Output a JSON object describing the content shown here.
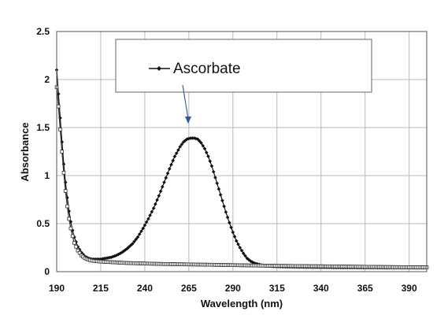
{
  "chart_data": {
    "type": "line",
    "xlabel": "Wavelength (nm)",
    "ylabel": "Absorbance",
    "xlim": [
      190,
      400
    ],
    "ylim": [
      0,
      2.5
    ],
    "x_ticks": [
      "190",
      "215",
      "240",
      "265",
      "290",
      "315",
      "340",
      "365",
      "390"
    ],
    "y_ticks": [
      "0",
      "0.5",
      "1",
      "1.5",
      "2",
      "2.5"
    ],
    "grid": true,
    "legend_position": "top-center",
    "series": [
      {
        "name": "Ascorbate",
        "marker": "diamond",
        "color": "#111111",
        "x": [
          190,
          191,
          192,
          193,
          194,
          195,
          196,
          197,
          198,
          199,
          200,
          202,
          204,
          206,
          208,
          210,
          212,
          215,
          218,
          221,
          224,
          227,
          230,
          233,
          236,
          239,
          242,
          245,
          248,
          251,
          254,
          257,
          260,
          262,
          264,
          266,
          268,
          270,
          272,
          274,
          276,
          278,
          280,
          282,
          284,
          286,
          288,
          290,
          292,
          294,
          296,
          298,
          300,
          302,
          304,
          306,
          308,
          310,
          313,
          316,
          320,
          330,
          340,
          350,
          360,
          370,
          380,
          390,
          400
        ],
        "y": [
          2.1,
          1.85,
          1.6,
          1.35,
          1.12,
          0.93,
          0.77,
          0.63,
          0.52,
          0.43,
          0.36,
          0.26,
          0.2,
          0.16,
          0.14,
          0.13,
          0.13,
          0.13,
          0.14,
          0.15,
          0.17,
          0.2,
          0.24,
          0.29,
          0.36,
          0.45,
          0.55,
          0.66,
          0.79,
          0.93,
          1.07,
          1.2,
          1.3,
          1.35,
          1.38,
          1.39,
          1.39,
          1.38,
          1.34,
          1.28,
          1.2,
          1.1,
          0.98,
          0.86,
          0.74,
          0.62,
          0.51,
          0.41,
          0.32,
          0.25,
          0.19,
          0.14,
          0.11,
          0.09,
          0.08,
          0.07,
          0.065,
          0.06,
          0.055,
          0.052,
          0.05,
          0.047,
          0.045,
          0.043,
          0.042,
          0.041,
          0.04,
          0.04,
          0.04
        ]
      },
      {
        "marker": "square",
        "color": "#333333",
        "x": [
          190,
          191,
          192,
          193,
          194,
          195,
          196,
          197,
          198,
          199,
          200,
          202,
          204,
          206,
          208,
          210,
          212,
          215,
          220,
          225,
          230,
          240,
          250,
          260,
          270,
          280,
          290,
          300,
          310,
          320,
          330,
          340,
          350,
          360,
          370,
          380,
          390,
          400
        ],
        "y": [
          1.92,
          1.72,
          1.48,
          1.25,
          1.03,
          0.84,
          0.68,
          0.55,
          0.45,
          0.37,
          0.3,
          0.22,
          0.17,
          0.14,
          0.125,
          0.115,
          0.11,
          0.105,
          0.1,
          0.095,
          0.09,
          0.085,
          0.08,
          0.077,
          0.074,
          0.071,
          0.068,
          0.065,
          0.062,
          0.06,
          0.058,
          0.056,
          0.054,
          0.052,
          0.05,
          0.048,
          0.046,
          0.045
        ]
      }
    ]
  }
}
